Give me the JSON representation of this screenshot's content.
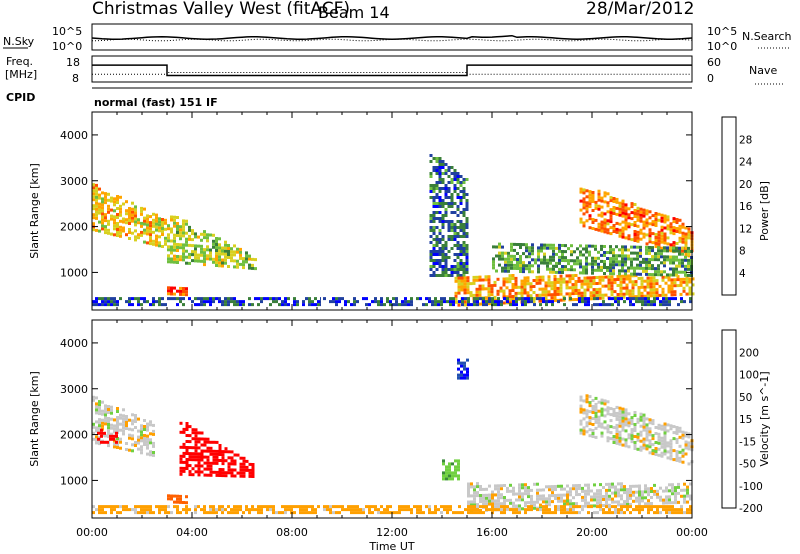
{
  "header": {
    "station": "Christmas Valley West (fitACF)",
    "beam": "Beam 14",
    "date": "28/Mar/2012"
  },
  "labels": {
    "nsky": "N.Sky",
    "nsearch": "N.Search",
    "freq_line1": "Freq.",
    "freq_line2": "[MHz]",
    "nave": "Nave",
    "cpid": "CPID",
    "cpid_value": "normal (fast) 151 IF"
  },
  "noise_panel": {
    "left_ticks": [
      "10^5",
      "10^0"
    ],
    "right_ticks": [
      "10^5",
      "10^0"
    ]
  },
  "freq_panel": {
    "left_ticks": [
      "18",
      "8"
    ],
    "right_ticks": [
      "60",
      "0"
    ],
    "freq_segments": [
      {
        "t0": 0.0,
        "t1": 3.0,
        "value": 14.5
      },
      {
        "t0": 3.0,
        "t1": 15.0,
        "value": 10.5
      },
      {
        "t0": 15.0,
        "t1": 24.0,
        "value": 14.5
      }
    ],
    "nave_segments": [
      {
        "t0": 0.0,
        "t1": 3.0,
        "value": 18
      },
      {
        "t0": 3.0,
        "t1": 15.0,
        "value": 22
      },
      {
        "t0": 15.0,
        "t1": 24.0,
        "value": 18
      }
    ]
  },
  "chart_data": [
    {
      "type": "heatmap",
      "panel": "power",
      "ylabel": "Slant Range [km]",
      "colorbar_label": "Power [dB]",
      "colorbar_ticks": [
        "28",
        "24",
        "20",
        "16",
        "12",
        "8",
        "4"
      ],
      "colorbar_colors": [
        "#0000ff",
        "#2040a0",
        "#3a7f3a",
        "#6fbf3f",
        "#d8d020",
        "#ffa500",
        "#ff5000",
        "#ff0000"
      ],
      "y_ticks": [
        "4000",
        "3000",
        "2000",
        "1000"
      ],
      "ylim": [
        180,
        4500
      ],
      "x_ticks": [
        "00:00",
        "04:00",
        "08:00",
        "12:00",
        "16:00",
        "20:00",
        "00:00"
      ],
      "xlim_hours": [
        0,
        24
      ],
      "xlabel": "",
      "echo_regions": [
        {
          "t0": 0.0,
          "t1": 3.0,
          "r_top0": 2900,
          "r_top1": 2100,
          "r_bot0": 1900,
          "r_bot1": 1500,
          "level": 20
        },
        {
          "t0": 3.0,
          "t1": 6.5,
          "r_top0": 2300,
          "r_top1": 1300,
          "r_bot0": 1200,
          "r_bot1": 1050,
          "level": 16
        },
        {
          "t0": 3.0,
          "t1": 3.8,
          "r_top0": 700,
          "r_top1": 650,
          "r_bot0": 500,
          "r_bot1": 480,
          "level": 26
        },
        {
          "t0": 13.5,
          "t1": 15.0,
          "r_top0": 3600,
          "r_top1": 3000,
          "r_bot0": 900,
          "r_bot1": 900,
          "level": 8
        },
        {
          "t0": 14.5,
          "t1": 24.0,
          "r_top0": 900,
          "r_top1": 900,
          "r_bot0": 250,
          "r_bot1": 500,
          "level": 22
        },
        {
          "t0": 19.5,
          "t1": 24.0,
          "r_top0": 2900,
          "r_top1": 2000,
          "r_bot0": 2000,
          "r_bot1": 1300,
          "level": 24
        },
        {
          "t0": 16.0,
          "t1": 24.0,
          "r_top0": 1600,
          "r_top1": 1500,
          "r_bot0": 1000,
          "r_bot1": 900,
          "level": 12
        },
        {
          "t0": 0.0,
          "t1": 24.0,
          "r_top0": 400,
          "r_top1": 400,
          "r_bot0": 200,
          "r_bot1": 200,
          "level": 6
        }
      ]
    },
    {
      "type": "heatmap",
      "panel": "velocity",
      "ylabel": "Slant Range [km]",
      "colorbar_label": "Velocity [m s^-1]",
      "colorbar_ticks": [
        "200",
        "100",
        "50",
        "15",
        "-15",
        "-50",
        "-100",
        "-200"
      ],
      "colorbar_colors": [
        "#ff0000",
        "#ff6000",
        "#ffa000",
        "#c8c8c8",
        "#70d040",
        "#3a8a3a",
        "#2050b0",
        "#0000ff"
      ],
      "y_ticks": [
        "4000",
        "3000",
        "2000",
        "1000"
      ],
      "ylim": [
        180,
        4500
      ],
      "x_ticks": [
        "00:00",
        "04:00",
        "08:00",
        "12:00",
        "16:00",
        "20:00",
        "00:00"
      ],
      "xlim_hours": [
        0,
        24
      ],
      "xlabel": "Time UT",
      "echo_regions": [
        {
          "t0": 0.0,
          "t1": 2.5,
          "r_top0": 2800,
          "r_top1": 2200,
          "r_bot0": 1800,
          "r_bot1": 1500,
          "level": 0
        },
        {
          "t0": 0.2,
          "t1": 1.0,
          "r_top0": 2100,
          "r_top1": 2000,
          "r_bot0": 1800,
          "r_bot1": 1800,
          "level": -200
        },
        {
          "t0": 3.5,
          "t1": 6.5,
          "r_top0": 2300,
          "r_top1": 1300,
          "r_bot0": 1100,
          "r_bot1": 1050,
          "level": -200
        },
        {
          "t0": 3.0,
          "t1": 3.8,
          "r_top0": 700,
          "r_top1": 650,
          "r_bot0": 500,
          "r_bot1": 480,
          "level": -80
        },
        {
          "t0": 14.6,
          "t1": 15.0,
          "r_top0": 3600,
          "r_top1": 3600,
          "r_bot0": 3200,
          "r_bot1": 3200,
          "level": 200
        },
        {
          "t0": 14.0,
          "t1": 14.6,
          "r_top0": 1400,
          "r_top1": 1400,
          "r_bot0": 1000,
          "r_bot1": 1000,
          "level": 40
        },
        {
          "t0": 15.0,
          "t1": 24.0,
          "r_top0": 900,
          "r_top1": 900,
          "r_bot0": 300,
          "r_bot1": 500,
          "level": 0
        },
        {
          "t0": 19.5,
          "t1": 24.0,
          "r_top0": 2900,
          "r_top1": 2000,
          "r_bot0": 2000,
          "r_bot1": 1300,
          "level": 0
        },
        {
          "t0": 0.0,
          "t1": 24.0,
          "r_top0": 400,
          "r_top1": 400,
          "r_bot0": 200,
          "r_bot1": 200,
          "level": -30
        }
      ]
    }
  ]
}
